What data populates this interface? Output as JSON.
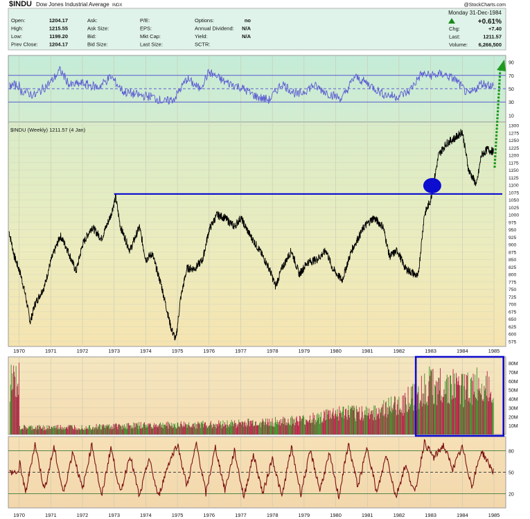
{
  "header": {
    "symbol": "$INDU",
    "name": "Dow Jones Industrial Average",
    "exchange": "INDX",
    "watermark": "@StockCharts.com",
    "date": "Monday  31-Dec-1984",
    "pct_change": "+0.61%",
    "quote_rows": [
      [
        {
          "label": "Open:",
          "value": "1204.17"
        },
        {
          "label": "Ask:",
          "value": ""
        },
        {
          "label": "P/E:",
          "value": ""
        },
        {
          "label": "Options:",
          "value": "no"
        }
      ],
      [
        {
          "label": "High:",
          "value": "1215.55"
        },
        {
          "label": "Ask Size:",
          "value": ""
        },
        {
          "label": "EPS:",
          "value": ""
        },
        {
          "label": "Annual Dividend:",
          "value": "N/A"
        }
      ],
      [
        {
          "label": "Low:",
          "value": "1199.20"
        },
        {
          "label": "Bid:",
          "value": ""
        },
        {
          "label": "Mkt Cap:",
          "value": ""
        },
        {
          "label": "Yield:",
          "value": "N/A"
        }
      ],
      [
        {
          "label": "Prev Close:",
          "value": "1204.17"
        },
        {
          "label": "Bid Size:",
          "value": ""
        },
        {
          "label": "Last Size:",
          "value": ""
        },
        {
          "label": "SCTR:",
          "value": ""
        }
      ]
    ],
    "right_rows": [
      {
        "label": "Chg:",
        "value": "+7.40"
      },
      {
        "label": "Last:",
        "value": "1211.57"
      },
      {
        "label": "Volume:",
        "value": "6,266,500"
      }
    ]
  },
  "colors": {
    "price": "#000000",
    "indicator": "#5a5ad2",
    "blue": "#0d0dd0",
    "green": "#1e9a1e",
    "volume_up": "#3c8c28",
    "volume_down": "#b8214a",
    "stoch": "#7a1010"
  },
  "chart_data": [
    {
      "type": "line",
      "series": [
        {
          "values": [
            [
              1970,
              48
            ],
            [
              1970.5,
              40
            ],
            [
              1971,
              60
            ],
            [
              1971.3,
              78
            ],
            [
              1971.6,
              55
            ],
            [
              1972,
              58
            ],
            [
              1972.5,
              52
            ],
            [
              1972.9,
              68
            ],
            [
              1973.3,
              45
            ],
            [
              1973.8,
              40
            ],
            [
              1974.2,
              38
            ],
            [
              1974.6,
              30
            ],
            [
              1974.9,
              35
            ],
            [
              1975.3,
              65
            ],
            [
              1975.7,
              50
            ],
            [
              1976,
              75
            ],
            [
              1976.5,
              60
            ],
            [
              1977,
              52
            ],
            [
              1977.5,
              38
            ],
            [
              1977.9,
              33
            ],
            [
              1978.3,
              58
            ],
            [
              1978.8,
              40
            ],
            [
              1979.3,
              55
            ],
            [
              1979.8,
              42
            ],
            [
              1980.2,
              35
            ],
            [
              1980.6,
              68
            ],
            [
              1981,
              58
            ],
            [
              1981.5,
              42
            ],
            [
              1981.9,
              38
            ],
            [
              1982.3,
              45
            ],
            [
              1982.7,
              72
            ],
            [
              1983,
              70
            ],
            [
              1983.4,
              72
            ],
            [
              1983.8,
              63
            ],
            [
              1984.2,
              40
            ],
            [
              1984.6,
              58
            ],
            [
              1984.99,
              55
            ]
          ]
        }
      ],
      "yticks": [
        10,
        30,
        50,
        70,
        90
      ],
      "ylim": [
        0,
        100
      ]
    },
    {
      "type": "line",
      "label": "$INDU (Weekly) 1211.57 (4 Jan)",
      "series": [
        {
          "values": [
            [
              1969.68,
              945
            ],
            [
              1969.85,
              860
            ],
            [
              1970.05,
              800
            ],
            [
              1970.2,
              730
            ],
            [
              1970.35,
              640
            ],
            [
              1970.5,
              700
            ],
            [
              1970.8,
              760
            ],
            [
              1971,
              845
            ],
            [
              1971.3,
              930
            ],
            [
              1971.5,
              890
            ],
            [
              1971.8,
              810
            ],
            [
              1972,
              900
            ],
            [
              1972.3,
              960
            ],
            [
              1972.6,
              920
            ],
            [
              1972.9,
              1000
            ],
            [
              1973.05,
              1060
            ],
            [
              1973.2,
              960
            ],
            [
              1973.5,
              880
            ],
            [
              1973.8,
              960
            ],
            [
              1974,
              850
            ],
            [
              1974.2,
              870
            ],
            [
              1974.5,
              760
            ],
            [
              1974.8,
              620
            ],
            [
              1974.95,
              580
            ],
            [
              1975.1,
              720
            ],
            [
              1975.3,
              820
            ],
            [
              1975.55,
              820
            ],
            [
              1975.8,
              850
            ],
            [
              1976,
              950
            ],
            [
              1976.25,
              1000
            ],
            [
              1976.5,
              990
            ],
            [
              1976.8,
              960
            ],
            [
              1977,
              990
            ],
            [
              1977.3,
              930
            ],
            [
              1977.6,
              880
            ],
            [
              1977.9,
              820
            ],
            [
              1978.1,
              760
            ],
            [
              1978.3,
              820
            ],
            [
              1978.6,
              880
            ],
            [
              1978.85,
              800
            ],
            [
              1979.1,
              840
            ],
            [
              1979.4,
              850
            ],
            [
              1979.7,
              880
            ],
            [
              1979.9,
              820
            ],
            [
              1980.2,
              780
            ],
            [
              1980.5,
              880
            ],
            [
              1980.9,
              960
            ],
            [
              1981.2,
              990
            ],
            [
              1981.5,
              960
            ],
            [
              1981.7,
              860
            ],
            [
              1981.95,
              880
            ],
            [
              1982.2,
              820
            ],
            [
              1982.5,
              800
            ],
            [
              1982.6,
              790
            ],
            [
              1982.8,
              1000
            ],
            [
              1983,
              1050
            ],
            [
              1983.25,
              1200
            ],
            [
              1983.5,
              1240
            ],
            [
              1983.8,
              1260
            ],
            [
              1984,
              1280
            ],
            [
              1984.2,
              1150
            ],
            [
              1984.45,
              1100
            ],
            [
              1984.6,
              1200
            ],
            [
              1984.8,
              1220
            ],
            [
              1984.99,
              1211.57
            ]
          ]
        }
      ],
      "reference_line": 1070,
      "yticks": [
        575,
        600,
        625,
        650,
        675,
        700,
        725,
        750,
        775,
        800,
        825,
        850,
        875,
        900,
        925,
        950,
        975,
        1000,
        1025,
        1050,
        1075,
        1100,
        1125,
        1150,
        1175,
        1200,
        1225,
        1250,
        1275,
        1300
      ],
      "ylim": [
        563,
        1307
      ]
    },
    {
      "type": "bar",
      "yticks": [
        "10M",
        "20M",
        "30M",
        "40M",
        "50M",
        "60M",
        "70M",
        "80M"
      ],
      "yvalues": [
        10,
        20,
        30,
        40,
        50,
        60,
        70,
        80
      ],
      "ylim": [
        0,
        87
      ],
      "levels": [
        [
          1970,
          8
        ],
        [
          1972,
          9
        ],
        [
          1974,
          11
        ],
        [
          1976,
          12
        ],
        [
          1978,
          15
        ],
        [
          1979,
          17
        ],
        [
          1980,
          25
        ],
        [
          1981,
          26
        ],
        [
          1982,
          35
        ],
        [
          1982.6,
          50
        ],
        [
          1983,
          60
        ],
        [
          1984,
          55
        ],
        [
          1985,
          62
        ]
      ]
    },
    {
      "type": "line",
      "series": [
        {
          "values": [
            [
              1970,
              70
            ],
            [
              1970.2,
              20
            ],
            [
              1970.5,
              90
            ],
            [
              1970.8,
              25
            ],
            [
              1971.1,
              85
            ],
            [
              1971.4,
              20
            ],
            [
              1971.7,
              80
            ],
            [
              1972,
              25
            ],
            [
              1972.3,
              90
            ],
            [
              1972.6,
              15
            ],
            [
              1972.9,
              85
            ],
            [
              1973.2,
              20
            ],
            [
              1973.5,
              75
            ],
            [
              1973.8,
              15
            ],
            [
              1974.1,
              70
            ],
            [
              1974.4,
              15
            ],
            [
              1974.7,
              60
            ],
            [
              1975,
              90
            ],
            [
              1975.3,
              30
            ],
            [
              1975.6,
              90
            ],
            [
              1975.9,
              20
            ],
            [
              1976.2,
              85
            ],
            [
              1976.5,
              25
            ],
            [
              1976.8,
              80
            ],
            [
              1977.1,
              15
            ],
            [
              1977.4,
              75
            ],
            [
              1977.7,
              20
            ],
            [
              1978,
              70
            ],
            [
              1978.3,
              15
            ],
            [
              1978.6,
              85
            ],
            [
              1978.9,
              20
            ],
            [
              1979.2,
              80
            ],
            [
              1979.5,
              25
            ],
            [
              1979.8,
              75
            ],
            [
              1980.1,
              15
            ],
            [
              1980.4,
              90
            ],
            [
              1980.7,
              30
            ],
            [
              1981,
              85
            ],
            [
              1981.3,
              20
            ],
            [
              1981.6,
              75
            ],
            [
              1981.9,
              15
            ],
            [
              1982.2,
              60
            ],
            [
              1982.5,
              20
            ],
            [
              1982.8,
              92
            ],
            [
              1983.1,
              70
            ],
            [
              1983.4,
              88
            ],
            [
              1983.7,
              55
            ],
            [
              1984,
              85
            ],
            [
              1984.3,
              30
            ],
            [
              1984.6,
              80
            ],
            [
              1984.99,
              50
            ]
          ]
        }
      ],
      "yticks": [
        20,
        50,
        80
      ],
      "ylim": [
        0,
        100
      ]
    }
  ],
  "xaxis": {
    "ticks": [
      "1970",
      "1971",
      "1972",
      "1973",
      "1974",
      "1975",
      "1976",
      "1977",
      "1978",
      "1979",
      "1980",
      "1981",
      "1982",
      "1983",
      "1984",
      "1985"
    ]
  }
}
